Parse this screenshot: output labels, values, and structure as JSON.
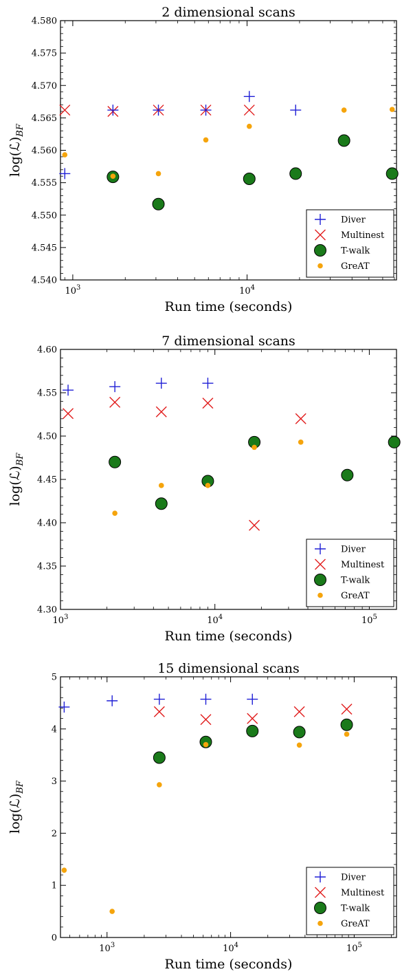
{
  "chart_data": [
    {
      "type": "scatter",
      "title": "2 dimensional scans",
      "xlabel": "Run time (seconds)",
      "ylabel": "log(ℒ)_BF",
      "xscale": "log",
      "xlim": [
        850,
        72000
      ],
      "ylim": [
        4.54,
        4.58
      ],
      "yticks": [
        4.54,
        4.545,
        4.55,
        4.555,
        4.56,
        4.565,
        4.57,
        4.575,
        4.58
      ],
      "ytick_labels": [
        "4.540",
        "4.545",
        "4.550",
        "4.555",
        "4.560",
        "4.565",
        "4.570",
        "4.575",
        "4.580"
      ],
      "xticks": [
        1000,
        10000
      ],
      "xtick_labels": [
        "10^3",
        "10^4"
      ],
      "grid": false,
      "legend_position": "lower-right",
      "series": [
        {
          "name": "Diver",
          "marker": "plus",
          "color": "#1f1fd6",
          "x": [
            900,
            1700,
            3100,
            5800,
            10300,
            19000,
            36000,
            68000
          ],
          "y": [
            4.5564,
            4.5662,
            4.5662,
            4.5662,
            4.5683,
            4.5662,
            null,
            null
          ]
        },
        {
          "name": "Multinest",
          "marker": "x",
          "color": "#e11c1c",
          "x": [
            900,
            1700,
            3100,
            5800,
            10300
          ],
          "y": [
            4.5662,
            4.566,
            4.5662,
            4.5662,
            4.5662
          ]
        },
        {
          "name": "T-walk",
          "marker": "circle",
          "color": "#1a7a1a",
          "x": [
            1700,
            3100,
            10300,
            19000,
            36000,
            68000
          ],
          "y": [
            4.5559,
            4.5517,
            4.5556,
            4.5564,
            4.5615,
            4.5564
          ]
        },
        {
          "name": "GreAT",
          "marker": "dot",
          "color": "#f5a40c",
          "x": [
            900,
            1700,
            3100,
            5800,
            10300,
            36000,
            68000
          ],
          "y": [
            4.5593,
            4.556,
            4.5564,
            4.5616,
            4.5637,
            4.5662,
            4.5663
          ]
        }
      ]
    },
    {
      "type": "scatter",
      "title": "7 dimensional scans",
      "xlabel": "Run time (seconds)",
      "ylabel": "log(ℒ)_BF",
      "xscale": "log",
      "xlim": [
        1000,
        150000
      ],
      "ylim": [
        4.3,
        4.6
      ],
      "yticks": [
        4.3,
        4.35,
        4.4,
        4.45,
        4.5,
        4.55,
        4.6
      ],
      "ytick_labels": [
        "4.30",
        "4.35",
        "4.40",
        "4.45",
        "4.50",
        "4.55",
        "4.60"
      ],
      "xticks": [
        1000,
        10000,
        100000
      ],
      "xtick_labels": [
        "10^3",
        "10^4",
        "10^5"
      ],
      "grid": false,
      "legend_position": "lower-right",
      "series": [
        {
          "name": "Diver",
          "marker": "plus",
          "color": "#1f1fd6",
          "x": [
            1120,
            2250,
            4500,
            9000
          ],
          "y": [
            4.553,
            4.557,
            4.561,
            4.561
          ]
        },
        {
          "name": "Multinest",
          "marker": "x",
          "color": "#e11c1c",
          "x": [
            1120,
            2250,
            4500,
            9000,
            18000,
            36000
          ],
          "y": [
            4.526,
            4.539,
            4.528,
            4.538,
            4.397,
            4.52
          ]
        },
        {
          "name": "T-walk",
          "marker": "circle",
          "color": "#1a7a1a",
          "x": [
            2250,
            4500,
            9000,
            18000,
            72000,
            145000
          ],
          "y": [
            4.47,
            4.422,
            4.448,
            4.493,
            4.455,
            4.493
          ]
        },
        {
          "name": "GreAT",
          "marker": "dot",
          "color": "#f5a40c",
          "x": [
            2250,
            4500,
            9000,
            18000,
            36000
          ],
          "y": [
            4.411,
            4.443,
            4.443,
            4.487,
            4.493
          ]
        }
      ]
    },
    {
      "type": "scatter",
      "title": "15 dimensional scans",
      "xlabel": "Run time (seconds)",
      "ylabel": "log(ℒ)_BF",
      "xscale": "log",
      "xlim": [
        420,
        220000
      ],
      "ylim": [
        0,
        5
      ],
      "yticks": [
        0,
        1,
        2,
        3,
        4,
        5
      ],
      "ytick_labels": [
        "0",
        "1",
        "2",
        "3",
        "4",
        "5"
      ],
      "xticks": [
        1000,
        10000,
        100000
      ],
      "xtick_labels": [
        "10^3",
        "10^4",
        "10^5"
      ],
      "grid": false,
      "legend_position": "lower-right",
      "series": [
        {
          "name": "Diver",
          "marker": "plus",
          "color": "#1f1fd6",
          "x": [
            450,
            1100,
            2650,
            6300,
            15000
          ],
          "y": [
            4.42,
            4.54,
            4.57,
            4.57,
            4.57
          ]
        },
        {
          "name": "Multinest",
          "marker": "x",
          "color": "#e11c1c",
          "x": [
            2650,
            6300,
            15000,
            36000,
            87000
          ],
          "y": [
            4.33,
            4.18,
            4.2,
            4.33,
            4.38
          ]
        },
        {
          "name": "T-walk",
          "marker": "circle",
          "color": "#1a7a1a",
          "x": [
            2650,
            6300,
            15000,
            36000,
            87000
          ],
          "y": [
            3.45,
            3.75,
            3.96,
            3.94,
            4.08
          ]
        },
        {
          "name": "GreAT",
          "marker": "dot",
          "color": "#f5a40c",
          "x": [
            450,
            1100,
            2650,
            6300,
            36000,
            87000
          ],
          "y": [
            1.29,
            0.5,
            2.93,
            3.7,
            3.69,
            3.9
          ]
        }
      ]
    }
  ]
}
